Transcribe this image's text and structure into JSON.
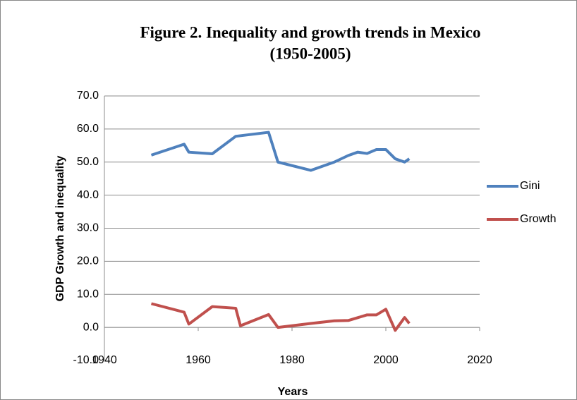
{
  "chart_data": {
    "type": "line",
    "title": "Figure 2. Inequality and growth trends in Mexico",
    "subtitle": "(1950-2005)",
    "x_label": "Years",
    "y_label": "GDP Growth and inequality",
    "xlim": [
      1940,
      2020
    ],
    "xticks": [
      1940,
      1960,
      1980,
      2000,
      2020
    ],
    "ylim": [
      -10,
      70
    ],
    "yticks": [
      {
        "value": -10,
        "label": "-10.0"
      },
      {
        "value": 0,
        "label": "0.0"
      },
      {
        "value": 10,
        "label": "10.0"
      },
      {
        "value": 20,
        "label": "20.0"
      },
      {
        "value": 30,
        "label": "30.0"
      },
      {
        "value": 40,
        "label": "40.0"
      },
      {
        "value": 50,
        "label": "50.0"
      },
      {
        "value": 60,
        "label": "60.0"
      },
      {
        "value": 70,
        "label": "70.0"
      }
    ],
    "grid": true,
    "legend": "right",
    "series": [
      {
        "name": "Gini",
        "color": "#4f81bd",
        "x": [
          1950,
          1957,
          1958,
          1963,
          1968,
          1975,
          1977,
          1984,
          1989,
          1992,
          1994,
          1996,
          1998,
          2000,
          2002,
          2004,
          2005
        ],
        "values": [
          52.1,
          55.4,
          53,
          52.5,
          57.8,
          59,
          50,
          47.5,
          50,
          52,
          53,
          52.6,
          53.8,
          53.8,
          51,
          50,
          51
        ]
      },
      {
        "name": "Growth",
        "color": "#c0504d",
        "x": [
          1950,
          1957,
          1958,
          1963,
          1968,
          1969,
          1975,
          1977,
          1984,
          1989,
          1992,
          1996,
          1998,
          2000,
          2002,
          2004,
          2005
        ],
        "values": [
          7.2,
          4.6,
          1.0,
          6.3,
          5.8,
          0.5,
          3.9,
          0,
          1.2,
          2.0,
          2.1,
          3.8,
          3.8,
          5.5,
          -0.9,
          3.0,
          1.2
        ]
      }
    ]
  }
}
